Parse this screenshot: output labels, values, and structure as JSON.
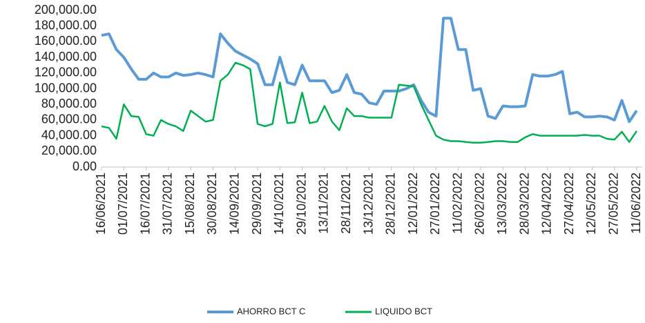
{
  "chart_data": {
    "type": "line",
    "categories": [
      "16/06/2021",
      null,
      null,
      "01/07/2021",
      null,
      null,
      "16/07/2021",
      null,
      null,
      "31/07/2021",
      null,
      null,
      "15/08/2021",
      null,
      null,
      "30/08/2021",
      null,
      null,
      "14/09/2021",
      null,
      null,
      "29/09/2021",
      null,
      null,
      "14/10/2021",
      null,
      null,
      "29/10/2021",
      null,
      null,
      "13/11/2021",
      null,
      null,
      "28/11/2021",
      null,
      null,
      "13/12/2021",
      null,
      null,
      "28/12/2021",
      null,
      null,
      "12/01/2022",
      null,
      null,
      "27/01/2022",
      null,
      null,
      "11/02/2022",
      null,
      null,
      "26/02/2022",
      null,
      null,
      "13/03/2022",
      null,
      null,
      "28/03/2022",
      null,
      null,
      "12/04/2022",
      null,
      null,
      "27/04/2022",
      null,
      null,
      "12/05/2022",
      null,
      null,
      "27/05/2022",
      null,
      null,
      "11/06/2022"
    ],
    "series": [
      {
        "name": "AHORRO BCT C",
        "color": "#5b9bd5",
        "values": [
          168000,
          170000,
          150000,
          140000,
          125000,
          112000,
          112000,
          120000,
          115000,
          115000,
          120000,
          117000,
          118000,
          120000,
          118000,
          115000,
          170000,
          158000,
          148000,
          143000,
          138000,
          132000,
          105000,
          105000,
          140000,
          108000,
          105000,
          130000,
          110000,
          110000,
          110000,
          95000,
          98000,
          118000,
          95000,
          93000,
          82000,
          80000,
          97000,
          97000,
          97000,
          100000,
          105000,
          85000,
          70000,
          65000,
          190000,
          190000,
          150000,
          150000,
          98000,
          100000,
          65000,
          62000,
          78000,
          77000,
          77000,
          78000,
          118000,
          116000,
          116000,
          118000,
          122000,
          68000,
          70000,
          64000,
          64000,
          65000,
          64000,
          60000,
          85000,
          58000,
          72000
        ]
      },
      {
        "name": "LIQUIDO BCT",
        "color": "#00b050",
        "values": [
          52000,
          50000,
          36000,
          80000,
          65000,
          64000,
          42000,
          40000,
          60000,
          55000,
          52000,
          46000,
          72000,
          65000,
          58000,
          60000,
          110000,
          118000,
          133000,
          130000,
          125000,
          55000,
          52000,
          55000,
          108000,
          56000,
          57000,
          95000,
          56000,
          58000,
          78000,
          58000,
          47000,
          75000,
          65000,
          65000,
          63000,
          63000,
          63000,
          63000,
          105000,
          104000,
          103000,
          80000,
          60000,
          40000,
          35000,
          33000,
          33000,
          32000,
          31000,
          31000,
          32000,
          33000,
          33000,
          32000,
          32000,
          38000,
          42000,
          40000,
          40000,
          40000,
          40000,
          40000,
          40000,
          41000,
          40000,
          40000,
          36000,
          35000,
          45000,
          32000,
          46000
        ]
      }
    ],
    "ylim": [
      0,
      200000
    ],
    "yticks": [
      {
        "value": 0,
        "label": "0.00"
      },
      {
        "value": 20000,
        "label": "20,000.00"
      },
      {
        "value": 40000,
        "label": "40,000.00"
      },
      {
        "value": 60000,
        "label": "60,000.00"
      },
      {
        "value": 80000,
        "label": "80,000.00"
      },
      {
        "value": 100000,
        "label": "100,000.00"
      },
      {
        "value": 120000,
        "label": "120,000.00"
      },
      {
        "value": 140000,
        "label": "140,000.00"
      },
      {
        "value": 160000,
        "label": "160,000.00"
      },
      {
        "value": 180000,
        "label": "180,000.00"
      },
      {
        "value": 200000,
        "label": "200,000.00"
      }
    ],
    "grid": false,
    "legend": "bottom"
  }
}
